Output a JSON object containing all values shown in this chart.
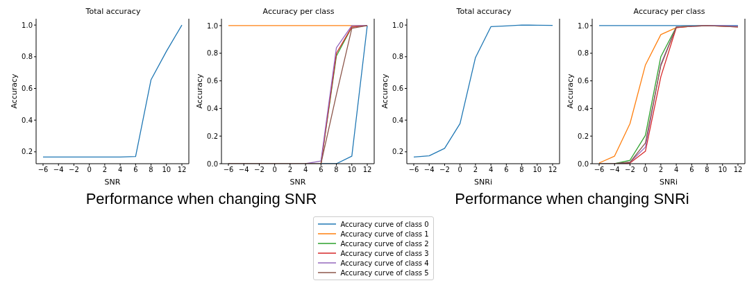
{
  "chart_data": [
    {
      "type": "line",
      "title": "Total accuracy",
      "xlabel": "SNR",
      "ylabel": "Accuracy",
      "x": [
        -6,
        -4,
        -2,
        0,
        2,
        4,
        6,
        8,
        10,
        12
      ],
      "xlim": [
        -6.9,
        12.9
      ],
      "xticks": [
        {
          "value": -6,
          "label": "−6"
        },
        {
          "value": -4,
          "label": "−4"
        },
        {
          "value": -2,
          "label": "−2"
        },
        0,
        2,
        4,
        6,
        8,
        10,
        12
      ],
      "ylim": [
        0.125,
        1.04
      ],
      "yticks": [
        {
          "value": 0.2,
          "label": "0.2"
        },
        {
          "value": 0.4,
          "label": "0.4"
        },
        {
          "value": 0.6,
          "label": "0.6"
        },
        {
          "value": 0.8,
          "label": "0.8"
        },
        {
          "value": 1.0,
          "label": "1.0"
        }
      ],
      "annotations": [
        "Performance when changing SNR"
      ],
      "series": [
        {
          "color": "#1f77b4",
          "values": [
            0.167,
            0.167,
            0.167,
            0.167,
            0.167,
            0.167,
            0.17,
            0.655,
            0.835,
            1.0
          ]
        }
      ]
    },
    {
      "type": "line",
      "title": "Accuracy per class",
      "xlabel": "SNR",
      "ylabel": "Accuracy",
      "x": [
        -6,
        -4,
        -2,
        0,
        2,
        4,
        6,
        8,
        10,
        12
      ],
      "xlim": [
        -6.9,
        12.9
      ],
      "xticks": [
        {
          "value": -6,
          "label": "−6"
        },
        {
          "value": -4,
          "label": "−4"
        },
        {
          "value": -2,
          "label": "−2"
        },
        0,
        2,
        4,
        6,
        8,
        10,
        12
      ],
      "ylim": [
        0,
        1.05
      ],
      "yticks": [
        {
          "value": 0,
          "label": "0.0"
        },
        {
          "value": 0.2,
          "label": "0.2"
        },
        {
          "value": 0.4,
          "label": "0.4"
        },
        {
          "value": 0.6,
          "label": "0.6"
        },
        {
          "value": 0.8,
          "label": "0.8"
        },
        {
          "value": 1.0,
          "label": "1.0"
        }
      ],
      "legend": "bottom",
      "series": [
        {
          "name": "Accuracy curve of class 0",
          "color": "#1f77b4",
          "values": [
            null,
            null,
            null,
            null,
            null,
            null,
            0,
            0,
            0.055,
            1.0
          ]
        },
        {
          "name": "Accuracy curve of class 1",
          "color": "#ff7f0e",
          "values": [
            1.0,
            1.0,
            1.0,
            1.0,
            1.0,
            1.0,
            1.0,
            1.0,
            1.0,
            1.0
          ]
        },
        {
          "name": "Accuracy curve of class 2",
          "color": "#2ca02c",
          "values": [
            null,
            null,
            null,
            null,
            null,
            null,
            0,
            0.78,
            0.99,
            1.0
          ]
        },
        {
          "name": "Accuracy curve of class 3",
          "color": "#d62728",
          "values": [
            null,
            null,
            null,
            null,
            null,
            null,
            0,
            0.8,
            0.99,
            1.0
          ]
        },
        {
          "name": "Accuracy curve of class 4",
          "color": "#9467bd",
          "values": [
            null,
            null,
            null,
            null,
            null,
            0,
            0.02,
            0.84,
            1.0,
            1.0
          ]
        },
        {
          "name": "Accuracy curve of class 5",
          "color": "#8c564b",
          "values": [
            0,
            0,
            0,
            0,
            0,
            0,
            0,
            0.5,
            0.98,
            1.0
          ]
        }
      ]
    },
    {
      "type": "line",
      "title": "Total accuracy",
      "xlabel": "SNRi",
      "ylabel": "Accuracy",
      "x": [
        -6,
        -4,
        -2,
        0,
        2,
        4,
        6,
        8,
        10,
        12
      ],
      "xlim": [
        -6.9,
        12.9
      ],
      "xticks": [
        {
          "value": -6,
          "label": "−6"
        },
        {
          "value": -4,
          "label": "−4"
        },
        {
          "value": -2,
          "label": "−2"
        },
        0,
        2,
        4,
        6,
        8,
        10,
        12
      ],
      "ylim": [
        0.125,
        1.04
      ],
      "yticks": [
        {
          "value": 0.2,
          "label": "0.2"
        },
        {
          "value": 0.4,
          "label": "0.4"
        },
        {
          "value": 0.6,
          "label": "0.6"
        },
        {
          "value": 0.8,
          "label": "0.8"
        },
        {
          "value": 1.0,
          "label": "1.0"
        }
      ],
      "annotations": [
        "Performance when changing SNRi"
      ],
      "series": [
        {
          "color": "#1f77b4",
          "values": [
            0.167,
            0.175,
            0.222,
            0.378,
            0.795,
            0.99,
            0.995,
            1.0,
            0.999,
            0.998
          ]
        }
      ]
    },
    {
      "type": "line",
      "title": "Accuracy per class",
      "xlabel": "SNRi",
      "ylabel": "Accuracy",
      "x": [
        -6,
        -4,
        -2,
        0,
        2,
        4,
        6,
        8,
        10,
        12
      ],
      "xlim": [
        -6.9,
        12.9
      ],
      "xticks": [
        {
          "value": -6,
          "label": "−6"
        },
        {
          "value": -4,
          "label": "−4"
        },
        {
          "value": -2,
          "label": "−2"
        },
        0,
        2,
        4,
        6,
        8,
        10,
        12
      ],
      "ylim": [
        0,
        1.05
      ],
      "yticks": [
        {
          "value": 0,
          "label": "0.0"
        },
        {
          "value": 0.2,
          "label": "0.2"
        },
        {
          "value": 0.4,
          "label": "0.4"
        },
        {
          "value": 0.6,
          "label": "0.6"
        },
        {
          "value": 0.8,
          "label": "0.8"
        },
        {
          "value": 1.0,
          "label": "1.0"
        }
      ],
      "legend": "bottom",
      "series": [
        {
          "name": "Accuracy curve of class 0",
          "color": "#1f77b4",
          "values": [
            1.0,
            1.0,
            1.0,
            1.0,
            1.0,
            1.0,
            1.0,
            1.0,
            1.0,
            1.0
          ]
        },
        {
          "name": "Accuracy curve of class 1",
          "color": "#ff7f0e",
          "values": [
            0.005,
            0.055,
            0.29,
            0.715,
            0.935,
            0.985,
            0.995,
            null,
            null,
            null
          ]
        },
        {
          "name": "Accuracy curve of class 2",
          "color": "#2ca02c",
          "values": [
            null,
            0,
            0.025,
            0.205,
            0.775,
            0.99,
            0.995,
            null,
            null,
            null
          ]
        },
        {
          "name": "Accuracy curve of class 3",
          "color": "#d62728",
          "values": [
            null,
            0,
            0.005,
            0.09,
            0.63,
            0.985,
            0.995,
            1.0,
            0.995,
            0.99
          ]
        },
        {
          "name": "Accuracy curve of class 4",
          "color": "#9467bd",
          "values": [
            null,
            0,
            0.01,
            0.12,
            0.72,
            0.99,
            0.995,
            1.0,
            1.0,
            0.995
          ]
        },
        {
          "name": "Accuracy curve of class 5",
          "color": "#8c564b",
          "values": [
            0,
            0,
            0.01,
            0.15,
            0.71,
            0.99,
            0.995,
            1.0,
            0.995,
            0.99
          ]
        }
      ]
    }
  ]
}
